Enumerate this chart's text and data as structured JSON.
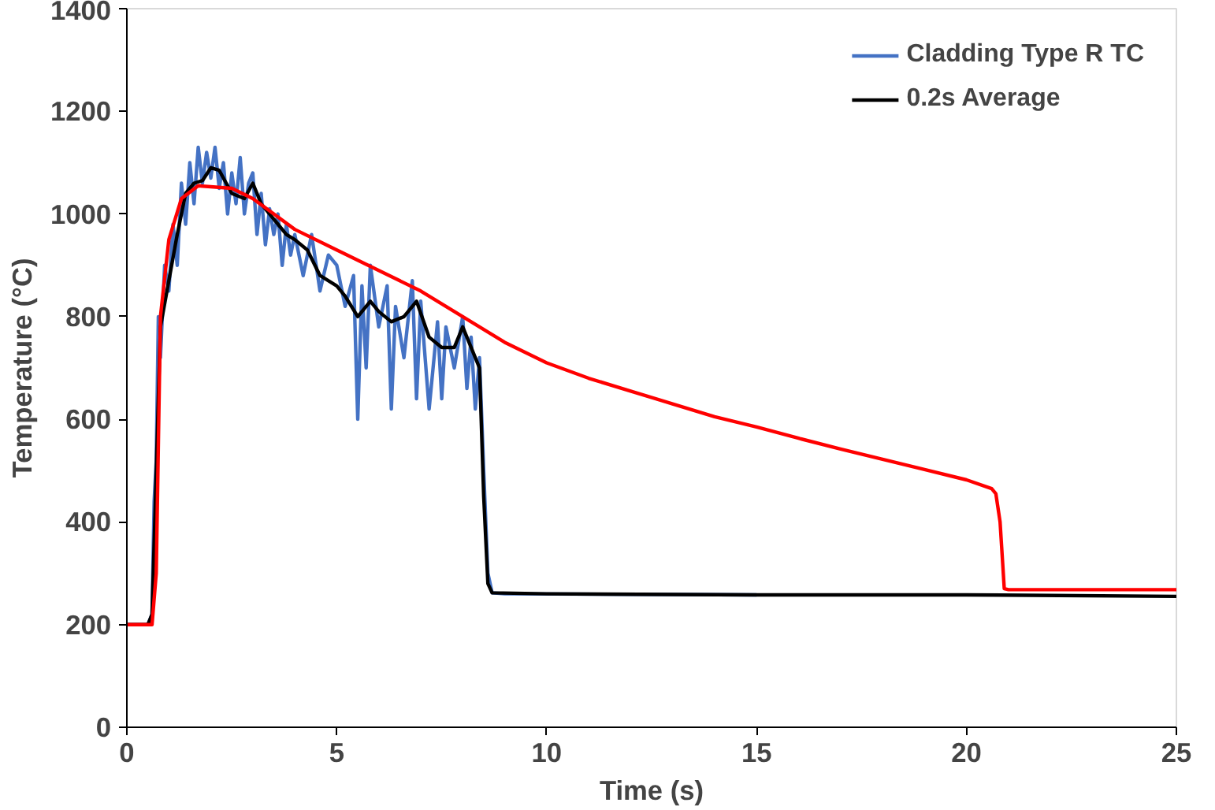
{
  "chart_data": {
    "type": "line",
    "xlabel": "Time (s)",
    "ylabel": "Temperature (°C)",
    "xlim": [
      0,
      25
    ],
    "ylim": [
      0,
      1400
    ],
    "xticks": [
      0,
      5,
      10,
      15,
      20,
      25
    ],
    "yticks": [
      0,
      200,
      400,
      600,
      800,
      1000,
      1200,
      1400
    ],
    "grid": false,
    "legend": "top right",
    "marker": "none",
    "line_style": "solid",
    "series": [
      {
        "name": "Cladding Type R TC",
        "color": "#4472c4",
        "x": [
          0,
          0.5,
          0.6,
          0.65,
          0.7,
          0.75,
          0.8,
          0.9,
          1.0,
          1.1,
          1.2,
          1.3,
          1.4,
          1.5,
          1.6,
          1.7,
          1.8,
          1.9,
          2.0,
          2.1,
          2.2,
          2.3,
          2.4,
          2.5,
          2.6,
          2.7,
          2.8,
          2.9,
          3.0,
          3.1,
          3.2,
          3.3,
          3.4,
          3.5,
          3.6,
          3.7,
          3.8,
          3.9,
          4.0,
          4.2,
          4.4,
          4.6,
          4.8,
          5.0,
          5.2,
          5.4,
          5.5,
          5.6,
          5.7,
          5.8,
          6.0,
          6.2,
          6.3,
          6.4,
          6.6,
          6.8,
          6.9,
          7.0,
          7.2,
          7.4,
          7.5,
          7.6,
          7.8,
          8.0,
          8.1,
          8.2,
          8.3,
          8.4,
          8.5,
          8.6,
          8.7,
          9,
          12,
          15
        ],
        "values": [
          200,
          200,
          220,
          440,
          520,
          800,
          720,
          900,
          850,
          980,
          900,
          1060,
          980,
          1100,
          1020,
          1130,
          1060,
          1120,
          1070,
          1130,
          1050,
          1100,
          1000,
          1080,
          1020,
          1110,
          1000,
          1060,
          1080,
          960,
          1040,
          940,
          1010,
          960,
          1000,
          900,
          980,
          920,
          960,
          880,
          960,
          850,
          920,
          900,
          820,
          880,
          600,
          860,
          700,
          900,
          780,
          860,
          620,
          820,
          720,
          870,
          640,
          830,
          620,
          790,
          640,
          780,
          700,
          800,
          660,
          760,
          620,
          720,
          500,
          300,
          262,
          260,
          259,
          258
        ]
      },
      {
        "name": "0.2s Average",
        "color": "#000000",
        "x": [
          0,
          0.5,
          0.6,
          0.7,
          0.8,
          1.0,
          1.2,
          1.4,
          1.6,
          1.8,
          2.0,
          2.2,
          2.5,
          2.8,
          3.0,
          3.2,
          3.5,
          3.8,
          4.0,
          4.3,
          4.6,
          5.0,
          5.2,
          5.5,
          5.8,
          6.0,
          6.3,
          6.6,
          6.9,
          7.2,
          7.5,
          7.8,
          8.0,
          8.2,
          8.4,
          8.5,
          8.6,
          8.7,
          10,
          15,
          20,
          25
        ],
        "values": [
          200,
          200,
          220,
          500,
          780,
          870,
          960,
          1040,
          1060,
          1065,
          1090,
          1085,
          1040,
          1030,
          1060,
          1020,
          990,
          960,
          950,
          930,
          880,
          860,
          840,
          800,
          830,
          810,
          790,
          800,
          830,
          760,
          740,
          740,
          780,
          740,
          700,
          450,
          280,
          262,
          260,
          258,
          258,
          255
        ]
      },
      {
        "color": "#ff0000",
        "x": [
          0,
          0.6,
          0.7,
          0.8,
          1.0,
          1.3,
          1.7,
          2.5,
          3,
          3.5,
          4,
          5,
          6,
          7,
          8,
          9,
          10,
          11,
          12,
          13,
          14,
          15,
          16,
          17,
          18,
          19,
          20,
          20.6,
          20.7,
          20.8,
          20.9,
          21,
          25
        ],
        "values": [
          200,
          200,
          300,
          800,
          950,
          1030,
          1055,
          1050,
          1030,
          1000,
          970,
          930,
          890,
          850,
          800,
          750,
          710,
          680,
          655,
          630,
          605,
          585,
          563,
          542,
          522,
          502,
          482,
          465,
          455,
          400,
          270,
          268,
          268
        ]
      }
    ]
  }
}
